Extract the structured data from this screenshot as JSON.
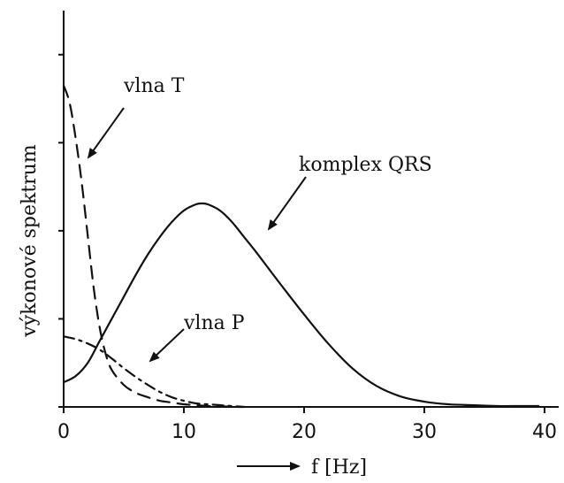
{
  "colors": {
    "ink": "#111111",
    "background": "#ffffff"
  },
  "chart_data": {
    "type": "line",
    "title": "",
    "xlabel": "f [Hz]",
    "ylabel": "výkonové spektrum",
    "xlim": [
      0,
      40
    ],
    "ylim": [
      0,
      4.5
    ],
    "x_ticks": [
      0,
      10,
      20,
      30,
      40
    ],
    "x_tick_labels": [
      "0",
      "10",
      "20",
      "30",
      "40"
    ],
    "y_ticks": [
      0,
      1,
      2,
      3,
      4
    ],
    "y_tick_labels_shown": false,
    "grid": false,
    "legend": "none",
    "series": [
      {
        "name": "komplex QRS",
        "style": "solid",
        "x": [
          0,
          1,
          2,
          3,
          4,
          5,
          6,
          7,
          8,
          9,
          10,
          11,
          11.5,
          12,
          13,
          14,
          15,
          16,
          17,
          18,
          20,
          22,
          24,
          26,
          28,
          30,
          32,
          34,
          36,
          38,
          39.5
        ],
        "y": [
          0.28,
          0.35,
          0.5,
          0.75,
          1.0,
          1.25,
          1.5,
          1.73,
          1.93,
          2.1,
          2.23,
          2.3,
          2.31,
          2.3,
          2.23,
          2.1,
          1.93,
          1.76,
          1.58,
          1.4,
          1.05,
          0.72,
          0.44,
          0.24,
          0.12,
          0.06,
          0.03,
          0.02,
          0.01,
          0.01,
          0.01
        ]
      },
      {
        "name": "vlna T",
        "style": "dashed",
        "x": [
          0,
          0.5,
          1,
          1.5,
          2,
          2.5,
          3,
          3.5,
          4,
          5,
          6,
          7,
          8,
          9,
          10,
          11,
          12,
          13,
          14,
          15
        ],
        "y": [
          3.65,
          3.45,
          3.05,
          2.55,
          1.95,
          1.35,
          0.9,
          0.6,
          0.42,
          0.25,
          0.16,
          0.11,
          0.07,
          0.05,
          0.03,
          0.02,
          0.01,
          0.01,
          0.0,
          0.0
        ]
      },
      {
        "name": "vlna P",
        "style": "dash-dot",
        "x": [
          0,
          1,
          2,
          3,
          4,
          5,
          6,
          7,
          8,
          9,
          10,
          11,
          12,
          13,
          14,
          15
        ],
        "y": [
          0.8,
          0.77,
          0.72,
          0.65,
          0.55,
          0.44,
          0.34,
          0.25,
          0.17,
          0.11,
          0.07,
          0.04,
          0.03,
          0.02,
          0.01,
          0.0
        ]
      }
    ],
    "annotations": [
      {
        "text": "vlna T",
        "arrow": true
      },
      {
        "text": "komplex QRS",
        "arrow": true
      },
      {
        "text": "vlna P",
        "arrow": true
      }
    ]
  }
}
